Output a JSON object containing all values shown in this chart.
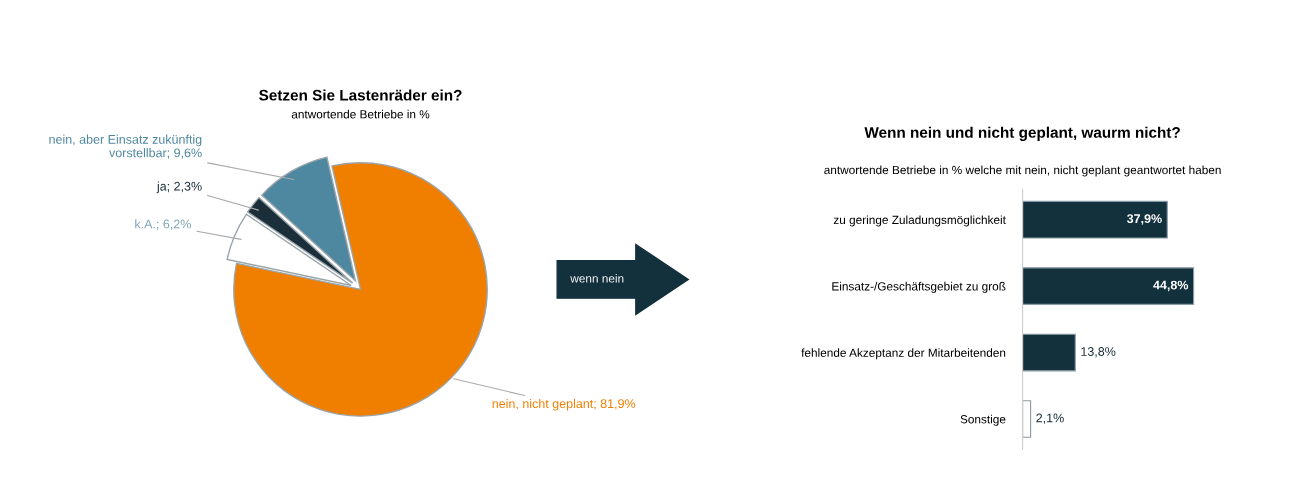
{
  "chart_data": [
    {
      "type": "pie",
      "title": "Setzen Sie Lastenräder ein?",
      "subtitle": "antwortende Betriebe in %",
      "categories": [
        "nein, aber Einsatz zukünftig vorstellbar",
        "ja",
        "k.A.",
        "nein, nicht geplant"
      ],
      "values": [
        9.6,
        2.3,
        6.2,
        81.9
      ],
      "value_labels": [
        "9,6%",
        "2,3%",
        "6,2%",
        "81,9%"
      ],
      "colors": [
        "#4e87a0",
        "#1b2f3a",
        "#ffffff",
        "#f07f00"
      ],
      "annotations": [
        "wenn nein"
      ]
    },
    {
      "type": "bar",
      "orientation": "horizontal",
      "title": "Wenn nein und nicht geplant, waurm nicht?",
      "subtitle": "antwortende Betriebe in % welche mit nein, nicht geplant geantwortet haben",
      "categories": [
        "zu geringe Zuladungsmöglichkeit",
        "Einsatz-/Geschäftsgebiet zu groß",
        "fehlende Akzeptanz der Mitarbeitenden",
        "Sonstige"
      ],
      "values": [
        37.9,
        44.8,
        13.8,
        2.1
      ],
      "value_labels": [
        "37,9%",
        "44,8%",
        "13,8%",
        "2,1%"
      ],
      "colors": [
        "#13303d",
        "#13303d",
        "#13303d",
        "#ffffff"
      ]
    }
  ]
}
